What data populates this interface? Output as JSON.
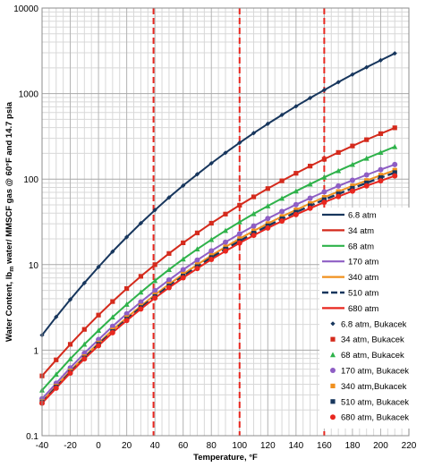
{
  "chart_data": {
    "type": "scatter",
    "xlabel": "Temperature, °F",
    "ylabel": "Water Content, lbm water/ MMSCF gas @ 60°F and 14.7 psia",
    "ylabel_parts": [
      "Water Content, lb",
      "m",
      " water/ MMSCF gas @ 60°F and 14.7 psia"
    ],
    "xlim": [
      -40,
      220
    ],
    "ylim": [
      0.1,
      10000
    ],
    "yscale": "log",
    "grid": true,
    "legend_position": "right-lower",
    "x_ticks": [
      "-40",
      "-20",
      "0",
      "20",
      "40",
      "60",
      "80",
      "100",
      "120",
      "140",
      "160",
      "180",
      "200",
      "220"
    ],
    "y_ticks": [
      "0.1",
      "1",
      "10",
      "100",
      "1000",
      "10000"
    ],
    "vertical_lines": [
      {
        "x": 39,
        "color": "#e8271f"
      },
      {
        "x": 100,
        "color": "#e8271f"
      },
      {
        "x": 160,
        "color": "#e8271f"
      }
    ],
    "series": [
      {
        "name": "6.8 atm",
        "kind": "line",
        "color": "#17365d",
        "x": [
          -40,
          -30,
          -20,
          -10,
          0,
          10,
          20,
          30,
          40,
          50,
          60,
          70,
          80,
          90,
          100,
          110,
          120,
          130,
          140,
          150,
          160,
          170,
          180,
          190,
          200,
          210
        ],
        "values": [
          1.5,
          2.45,
          3.9,
          6.1,
          9.4,
          14.2,
          21,
          30.5,
          43.5,
          61,
          84,
          114,
          153,
          203,
          266,
          345,
          443,
          563,
          710,
          888,
          1100,
          1360,
          1670,
          2030,
          2450,
          2950
        ]
      },
      {
        "name": "34 atm",
        "kind": "line",
        "color": "#d42a1c",
        "x": [
          -40,
          -30,
          -20,
          -10,
          0,
          10,
          20,
          30,
          40,
          50,
          60,
          70,
          80,
          90,
          100,
          110,
          120,
          130,
          140,
          150,
          160,
          170,
          180,
          190,
          200,
          210
        ],
        "values": [
          0.5,
          0.77,
          1.17,
          1.75,
          2.57,
          3.7,
          5.25,
          7.3,
          10,
          13.5,
          18,
          23.5,
          30.5,
          39,
          49.5,
          62,
          77.5,
          95.5,
          117,
          142,
          171,
          205,
          244,
          289,
          340,
          398
        ]
      },
      {
        "name": "68 atm",
        "kind": "line",
        "color": "#2eb24a",
        "x": [
          -40,
          -30,
          -20,
          -10,
          0,
          10,
          20,
          30,
          40,
          50,
          60,
          70,
          80,
          90,
          100,
          110,
          120,
          130,
          140,
          150,
          160,
          170,
          180,
          190,
          200,
          210
        ],
        "values": [
          0.34,
          0.52,
          0.79,
          1.17,
          1.7,
          2.43,
          3.43,
          4.75,
          6.5,
          8.75,
          11.6,
          15.2,
          19.6,
          25,
          31.5,
          39.3,
          48.5,
          59.5,
          72.3,
          87.3,
          105,
          125,
          148,
          175,
          205,
          239
        ]
      },
      {
        "name": "170 atm",
        "kind": "line",
        "color": "#8e5ec4",
        "x": [
          -40,
          -30,
          -20,
          -10,
          0,
          10,
          20,
          30,
          40,
          50,
          60,
          70,
          80,
          90,
          100,
          110,
          120,
          130,
          140,
          150,
          160,
          170,
          180,
          190,
          200,
          210
        ],
        "values": [
          0.27,
          0.41,
          0.62,
          0.92,
          1.33,
          1.9,
          2.66,
          3.66,
          4.97,
          6.63,
          8.73,
          11.3,
          14.5,
          18.3,
          22.9,
          28.3,
          34.6,
          41.9,
          50.3,
          59.9,
          70.8,
          83.1,
          97,
          112,
          129,
          148
        ]
      },
      {
        "name": "340 atm",
        "kind": "line",
        "color": "#f0901e",
        "x": [
          -40,
          -30,
          -20,
          -10,
          0,
          10,
          20,
          30,
          40,
          50,
          60,
          70,
          80,
          90,
          100,
          110,
          120,
          130,
          140,
          150,
          160,
          170,
          180,
          190,
          200,
          210
        ],
        "values": [
          0.25,
          0.38,
          0.57,
          0.84,
          1.21,
          1.72,
          2.4,
          3.29,
          4.44,
          5.9,
          7.73,
          10,
          12.8,
          16.1,
          20.1,
          24.8,
          30.2,
          36.5,
          43.7,
          51.9,
          61.2,
          71.6,
          83.3,
          96.3,
          111,
          127
        ]
      },
      {
        "name": "510 atm",
        "kind": "dashed",
        "color": "#17365d",
        "x": [
          -40,
          -30,
          -20,
          -10,
          0,
          10,
          20,
          30,
          40,
          50,
          60,
          70,
          80,
          90,
          100,
          110,
          120,
          130,
          140,
          150,
          160,
          170,
          180,
          190,
          200,
          210
        ],
        "values": [
          0.245,
          0.37,
          0.55,
          0.81,
          1.17,
          1.65,
          2.3,
          3.15,
          4.24,
          5.62,
          7.34,
          9.47,
          12.1,
          15.2,
          18.9,
          23.3,
          28.4,
          34.3,
          41,
          48.7,
          57.4,
          67.1,
          78,
          90.1,
          104,
          119
        ]
      },
      {
        "name": "680 atm",
        "kind": "line",
        "color": "#e8271f",
        "x": [
          -40,
          -30,
          -20,
          -10,
          0,
          10,
          20,
          30,
          40,
          50,
          60,
          70,
          80,
          90,
          100,
          110,
          120,
          130,
          140,
          150,
          160,
          170,
          180,
          190,
          200,
          210
        ],
        "values": [
          0.24,
          0.36,
          0.54,
          0.79,
          1.13,
          1.6,
          2.22,
          3.03,
          4.07,
          5.38,
          7.01,
          9.02,
          11.5,
          14.4,
          17.9,
          22,
          26.8,
          32.3,
          38.5,
          45.6,
          53.6,
          62.5,
          72.4,
          83.4,
          95.5,
          109
        ]
      },
      {
        "name": "6.8 atm, Bukacek",
        "kind": "marker",
        "marker": "diamond",
        "color": "#17365d",
        "x": [
          -40,
          -30,
          -20,
          -10,
          0,
          10,
          20,
          30,
          40,
          50,
          60,
          70,
          80,
          90,
          100,
          110,
          120,
          130,
          140,
          150,
          160,
          170,
          180,
          190,
          200,
          210
        ],
        "values": [
          1.5,
          2.45,
          3.9,
          6.1,
          9.4,
          14.2,
          21,
          30.5,
          43.5,
          61,
          84,
          114,
          153,
          203,
          266,
          345,
          443,
          563,
          710,
          888,
          1100,
          1360,
          1670,
          2030,
          2450,
          2950
        ]
      },
      {
        "name": "34 atm, Bukacek",
        "kind": "marker",
        "marker": "square",
        "color": "#d42a1c",
        "x": [
          -40,
          -30,
          -20,
          -10,
          0,
          10,
          20,
          30,
          40,
          50,
          60,
          70,
          80,
          90,
          100,
          110,
          120,
          130,
          140,
          150,
          160,
          170,
          180,
          190,
          200,
          210
        ],
        "values": [
          0.5,
          0.77,
          1.17,
          1.75,
          2.57,
          3.7,
          5.25,
          7.3,
          10,
          13.5,
          18,
          23.5,
          30.5,
          39,
          49.5,
          62,
          77.5,
          95.5,
          117,
          142,
          171,
          205,
          244,
          289,
          340,
          398
        ]
      },
      {
        "name": "68 atm, Bukacek",
        "kind": "marker",
        "marker": "triangle",
        "color": "#2eb24a",
        "x": [
          -40,
          -30,
          -20,
          -10,
          0,
          10,
          20,
          30,
          40,
          50,
          60,
          70,
          80,
          90,
          100,
          110,
          120,
          130,
          140,
          150,
          160,
          170,
          180,
          190,
          200,
          210
        ],
        "values": [
          0.34,
          0.52,
          0.79,
          1.17,
          1.7,
          2.43,
          3.43,
          4.75,
          6.5,
          8.75,
          11.6,
          15.2,
          19.6,
          25,
          31.5,
          39.3,
          48.5,
          59.5,
          72.3,
          87.3,
          105,
          125,
          148,
          175,
          205,
          239
        ]
      },
      {
        "name": "170 atm, Bukacek",
        "kind": "marker",
        "marker": "circle",
        "color": "#8e5ec4",
        "x": [
          -40,
          -30,
          -20,
          -10,
          0,
          10,
          20,
          30,
          40,
          50,
          60,
          70,
          80,
          90,
          100,
          110,
          120,
          130,
          140,
          150,
          160,
          170,
          180,
          190,
          200,
          210
        ],
        "values": [
          0.27,
          0.41,
          0.62,
          0.92,
          1.33,
          1.9,
          2.66,
          3.66,
          4.97,
          6.63,
          8.73,
          11.3,
          14.5,
          18.3,
          22.9,
          28.3,
          34.6,
          41.9,
          50.3,
          59.9,
          70.8,
          83.1,
          97,
          112,
          129,
          148
        ]
      },
      {
        "name": "340 atm,Bukacek",
        "kind": "marker",
        "marker": "square",
        "color": "#f0901e",
        "x": [
          -40,
          -30,
          -20,
          -10,
          0,
          10,
          20,
          30,
          40,
          50,
          60,
          70,
          80,
          90,
          100,
          110,
          120,
          130,
          140,
          150,
          160,
          170,
          180,
          190,
          200,
          210
        ],
        "values": [
          0.25,
          0.38,
          0.57,
          0.84,
          1.21,
          1.72,
          2.4,
          3.29,
          4.44,
          5.9,
          7.73,
          10,
          12.8,
          16.1,
          20.1,
          24.8,
          30.2,
          36.5,
          43.7,
          51.9,
          61.2,
          71.6,
          83.3,
          96.3,
          111,
          127
        ]
      },
      {
        "name": "510 atm, Bukacek",
        "kind": "marker",
        "marker": "square",
        "color": "#17365d",
        "x": [
          -40,
          -30,
          -20,
          -10,
          0,
          10,
          20,
          30,
          40,
          50,
          60,
          70,
          80,
          90,
          100,
          110,
          120,
          130,
          140,
          150,
          160,
          170,
          180,
          190,
          200,
          210
        ],
        "values": [
          0.245,
          0.37,
          0.55,
          0.81,
          1.17,
          1.65,
          2.3,
          3.15,
          4.24,
          5.62,
          7.34,
          9.47,
          12.1,
          15.2,
          18.9,
          23.3,
          28.4,
          34.3,
          41,
          48.7,
          57.4,
          67.1,
          78,
          90.1,
          104,
          119
        ]
      },
      {
        "name": "680 atm, Bukacek",
        "kind": "marker",
        "marker": "circle",
        "color": "#e8271f",
        "x": [
          -40,
          -30,
          -20,
          -10,
          0,
          10,
          20,
          30,
          40,
          50,
          60,
          70,
          80,
          90,
          100,
          110,
          120,
          130,
          140,
          150,
          160,
          170,
          180,
          190,
          200,
          210
        ],
        "values": [
          0.24,
          0.36,
          0.54,
          0.79,
          1.13,
          1.6,
          2.22,
          3.03,
          4.07,
          5.38,
          7.01,
          9.02,
          11.5,
          14.4,
          17.9,
          22,
          26.8,
          32.3,
          38.5,
          45.6,
          53.6,
          62.5,
          72.4,
          83.4,
          95.5,
          109
        ]
      }
    ]
  }
}
